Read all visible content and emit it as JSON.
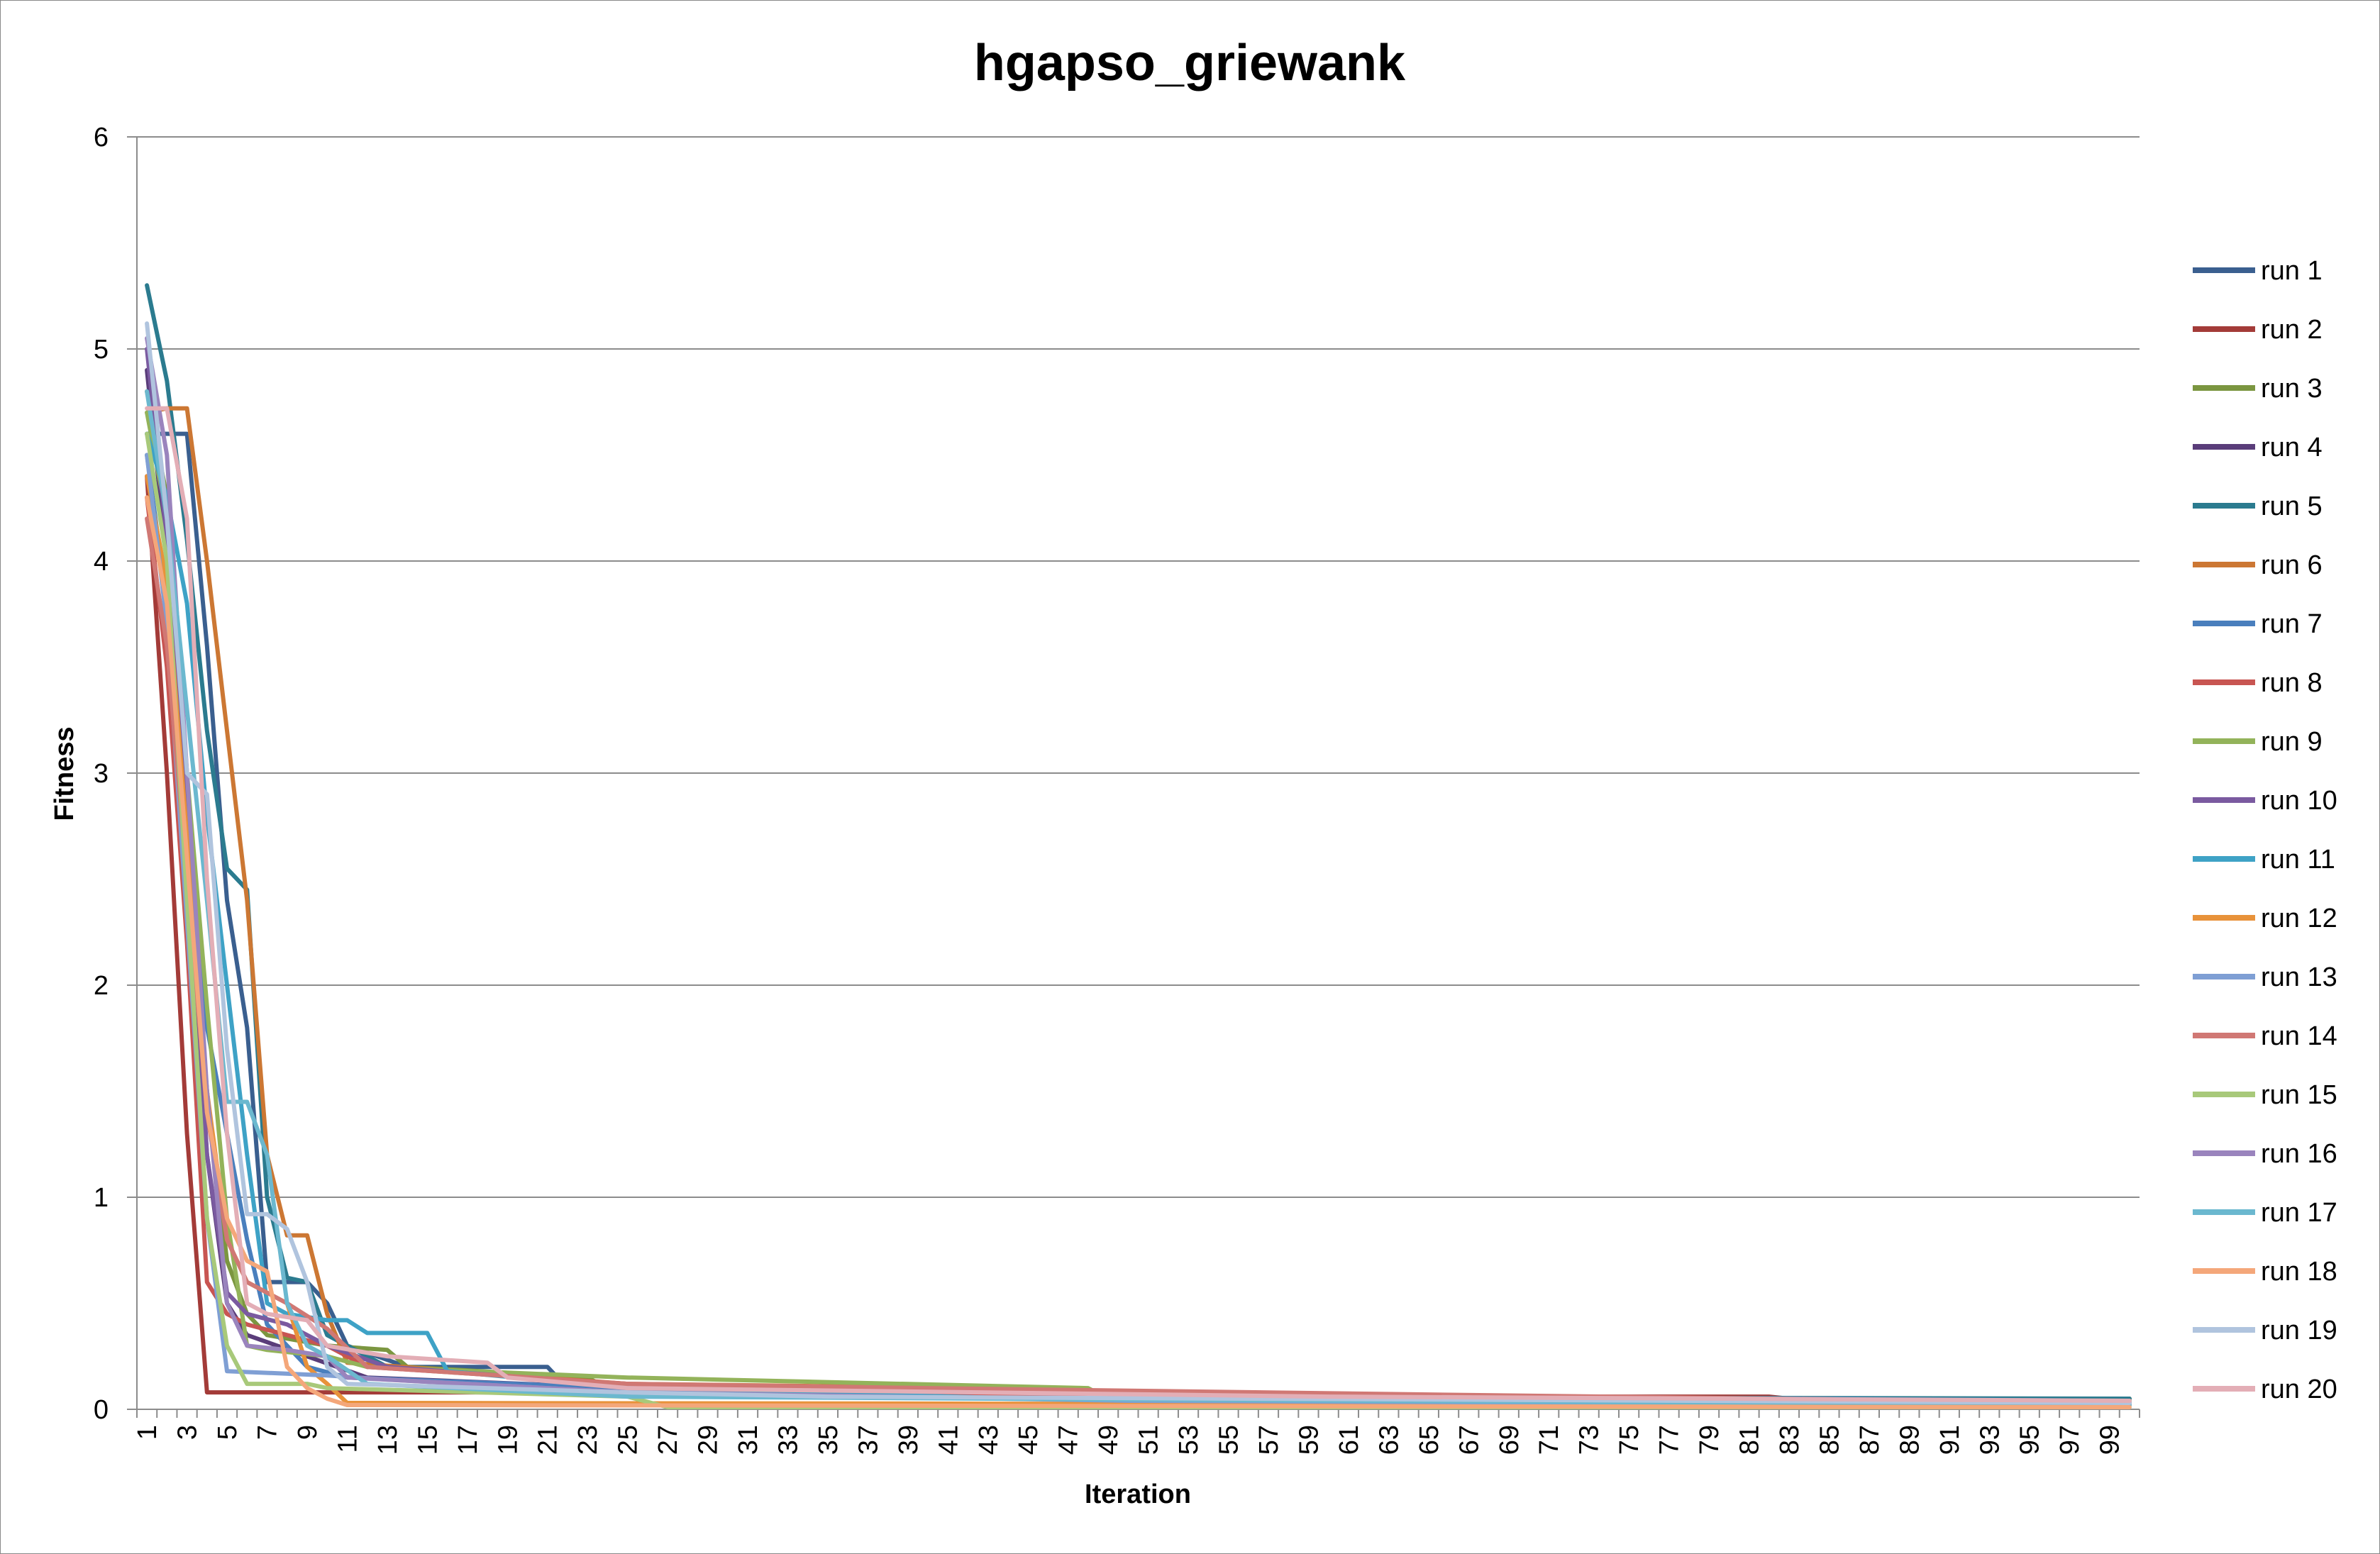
{
  "chart_data": {
    "type": "line",
    "title": "hgapso_griewank",
    "xlabel": "Iteration",
    "ylabel": "Fitness",
    "ylim": [
      0,
      6
    ],
    "yticks": [
      0,
      1,
      2,
      3,
      4,
      5,
      6
    ],
    "xrange": [
      1,
      100
    ],
    "xtick_step": 2,
    "grid": "horizontal",
    "legend_position": "right",
    "series": [
      {
        "name": "run 1",
        "color": "#3a5f8f",
        "points": [
          [
            1,
            4.6
          ],
          [
            2,
            4.6
          ],
          [
            3,
            4.6
          ],
          [
            4,
            3.6
          ],
          [
            5,
            2.4
          ],
          [
            6,
            1.8
          ],
          [
            7,
            0.6
          ],
          [
            8,
            0.6
          ],
          [
            9,
            0.6
          ],
          [
            10,
            0.5
          ],
          [
            11,
            0.3
          ],
          [
            14,
            0.2
          ],
          [
            21,
            0.2
          ],
          [
            22,
            0.1
          ],
          [
            45,
            0.07
          ],
          [
            100,
            0.04
          ]
        ]
      },
      {
        "name": "run 2",
        "color": "#a33b38",
        "points": [
          [
            1,
            4.4
          ],
          [
            2,
            3.0
          ],
          [
            3,
            1.3
          ],
          [
            4,
            0.08
          ],
          [
            30,
            0.08
          ],
          [
            31,
            0.06
          ],
          [
            82,
            0.06
          ],
          [
            83,
            0.05
          ],
          [
            100,
            0.05
          ]
        ]
      },
      {
        "name": "run 3",
        "color": "#7b9640",
        "points": [
          [
            1,
            4.8
          ],
          [
            2,
            4.3
          ],
          [
            3,
            2.6
          ],
          [
            4,
            1.5
          ],
          [
            5,
            0.7
          ],
          [
            6,
            0.45
          ],
          [
            7,
            0.35
          ],
          [
            10,
            0.3
          ],
          [
            13,
            0.28
          ],
          [
            14,
            0.2
          ],
          [
            23,
            0.15
          ],
          [
            24,
            0.1
          ],
          [
            48,
            0.09
          ],
          [
            49,
            0.05
          ],
          [
            100,
            0.05
          ]
        ]
      },
      {
        "name": "run 4",
        "color": "#5a3d7a",
        "points": [
          [
            1,
            4.9
          ],
          [
            2,
            4.0
          ],
          [
            3,
            2.5
          ],
          [
            4,
            1.2
          ],
          [
            5,
            0.5
          ],
          [
            6,
            0.35
          ],
          [
            9,
            0.25
          ],
          [
            12,
            0.15
          ],
          [
            25,
            0.1
          ],
          [
            50,
            0.06
          ],
          [
            100,
            0.03
          ]
        ]
      },
      {
        "name": "run 5",
        "color": "#2b7b8f",
        "points": [
          [
            1,
            5.3
          ],
          [
            2,
            4.85
          ],
          [
            3,
            4.1
          ],
          [
            4,
            3.2
          ],
          [
            5,
            2.55
          ],
          [
            6,
            2.45
          ],
          [
            7,
            1.0
          ],
          [
            8,
            0.62
          ],
          [
            9,
            0.6
          ],
          [
            10,
            0.35
          ],
          [
            13,
            0.2
          ],
          [
            20,
            0.15
          ],
          [
            25,
            0.1
          ],
          [
            45,
            0.06
          ],
          [
            100,
            0.05
          ]
        ]
      },
      {
        "name": "run 6",
        "color": "#cc7733",
        "points": [
          [
            1,
            4.7
          ],
          [
            2,
            4.72
          ],
          [
            3,
            4.72
          ],
          [
            4,
            4.0
          ],
          [
            5,
            3.2
          ],
          [
            6,
            2.4
          ],
          [
            7,
            1.2
          ],
          [
            8,
            0.82
          ],
          [
            9,
            0.82
          ],
          [
            10,
            0.45
          ],
          [
            11,
            0.22
          ],
          [
            25,
            0.12
          ],
          [
            43,
            0.1
          ],
          [
            44,
            0.06
          ],
          [
            100,
            0.04
          ]
        ]
      },
      {
        "name": "run 7",
        "color": "#4a7fbd",
        "points": [
          [
            1,
            4.5
          ],
          [
            2,
            3.8
          ],
          [
            3,
            2.6
          ],
          [
            4,
            1.8
          ],
          [
            5,
            1.3
          ],
          [
            6,
            0.8
          ],
          [
            7,
            0.4
          ],
          [
            8,
            0.3
          ],
          [
            9,
            0.2
          ],
          [
            11,
            0.15
          ],
          [
            25,
            0.1
          ],
          [
            40,
            0.07
          ],
          [
            68,
            0.06
          ],
          [
            100,
            0.04
          ]
        ]
      },
      {
        "name": "run 8",
        "color": "#c85552",
        "points": [
          [
            1,
            4.3
          ],
          [
            2,
            3.5
          ],
          [
            3,
            2.2
          ],
          [
            4,
            0.6
          ],
          [
            5,
            0.45
          ],
          [
            6,
            0.4
          ],
          [
            8,
            0.35
          ],
          [
            10,
            0.3
          ],
          [
            12,
            0.2
          ],
          [
            25,
            0.12
          ],
          [
            30,
            0.08
          ],
          [
            100,
            0.03
          ]
        ]
      },
      {
        "name": "run 9",
        "color": "#93b35a",
        "points": [
          [
            1,
            4.7
          ],
          [
            2,
            4.2
          ],
          [
            3,
            3.0
          ],
          [
            4,
            1.9
          ],
          [
            5,
            0.9
          ],
          [
            6,
            0.3
          ],
          [
            7,
            0.28
          ],
          [
            10,
            0.25
          ],
          [
            12,
            0.2
          ],
          [
            25,
            0.15
          ],
          [
            48,
            0.1
          ],
          [
            49,
            0.05
          ],
          [
            100,
            0.04
          ]
        ]
      },
      {
        "name": "run 10",
        "color": "#7a5aa0",
        "points": [
          [
            1,
            5.0
          ],
          [
            2,
            4.1
          ],
          [
            3,
            2.8
          ],
          [
            4,
            1.2
          ],
          [
            5,
            0.55
          ],
          [
            6,
            0.45
          ],
          [
            8,
            0.4
          ],
          [
            10,
            0.3
          ],
          [
            13,
            0.2
          ],
          [
            20,
            0.15
          ],
          [
            25,
            0.1
          ],
          [
            45,
            0.05
          ],
          [
            100,
            0.03
          ]
        ]
      },
      {
        "name": "run 11",
        "color": "#3ea2c6",
        "points": [
          [
            1,
            4.6
          ],
          [
            2,
            4.3
          ],
          [
            3,
            3.8
          ],
          [
            4,
            2.8
          ],
          [
            5,
            2.0
          ],
          [
            6,
            1.2
          ],
          [
            7,
            0.5
          ],
          [
            8,
            0.45
          ],
          [
            10,
            0.42
          ],
          [
            11,
            0.42
          ],
          [
            12,
            0.36
          ],
          [
            15,
            0.36
          ],
          [
            16,
            0.18
          ],
          [
            25,
            0.1
          ],
          [
            45,
            0.05
          ],
          [
            100,
            0.02
          ]
        ]
      },
      {
        "name": "run 12",
        "color": "#e8923a",
        "points": [
          [
            1,
            4.4
          ],
          [
            2,
            3.9
          ],
          [
            3,
            2.7
          ],
          [
            4,
            1.5
          ],
          [
            5,
            0.8
          ],
          [
            6,
            0.6
          ],
          [
            7,
            0.55
          ],
          [
            8,
            0.5
          ],
          [
            9,
            0.2
          ],
          [
            10,
            0.12
          ],
          [
            11,
            0.03
          ],
          [
            100,
            0.02
          ]
        ]
      },
      {
        "name": "run 13",
        "color": "#7f9fd4",
        "points": [
          [
            1,
            4.5
          ],
          [
            2,
            3.7
          ],
          [
            3,
            2.3
          ],
          [
            4,
            0.9
          ],
          [
            5,
            0.18
          ],
          [
            10,
            0.16
          ],
          [
            13,
            0.14
          ],
          [
            25,
            0.08
          ],
          [
            50,
            0.04
          ],
          [
            100,
            0.02
          ]
        ]
      },
      {
        "name": "run 14",
        "color": "#d07874",
        "points": [
          [
            1,
            4.2
          ],
          [
            2,
            3.6
          ],
          [
            3,
            2.5
          ],
          [
            4,
            1.4
          ],
          [
            5,
            0.8
          ],
          [
            6,
            0.6
          ],
          [
            8,
            0.5
          ],
          [
            10,
            0.38
          ],
          [
            12,
            0.2
          ],
          [
            25,
            0.12
          ],
          [
            40,
            0.1
          ],
          [
            65,
            0.07
          ],
          [
            100,
            0.03
          ]
        ]
      },
      {
        "name": "run 15",
        "color": "#a8c97a",
        "points": [
          [
            1,
            4.6
          ],
          [
            2,
            4.0
          ],
          [
            3,
            2.4
          ],
          [
            4,
            0.9
          ],
          [
            5,
            0.3
          ],
          [
            6,
            0.12
          ],
          [
            9,
            0.12
          ],
          [
            10,
            0.1
          ],
          [
            25,
            0.06
          ],
          [
            27,
            0.01
          ],
          [
            100,
            0.01
          ]
        ]
      },
      {
        "name": "run 16",
        "color": "#9a84bd",
        "points": [
          [
            1,
            5.05
          ],
          [
            2,
            4.5
          ],
          [
            3,
            3.0
          ],
          [
            4,
            1.5
          ],
          [
            5,
            0.5
          ],
          [
            6,
            0.3
          ],
          [
            8,
            0.28
          ],
          [
            10,
            0.25
          ],
          [
            11,
            0.15
          ],
          [
            25,
            0.08
          ],
          [
            45,
            0.05
          ],
          [
            100,
            0.03
          ]
        ]
      },
      {
        "name": "run 17",
        "color": "#6bb8cf",
        "points": [
          [
            1,
            4.8
          ],
          [
            2,
            4.2
          ],
          [
            3,
            3.3
          ],
          [
            4,
            2.4
          ],
          [
            5,
            1.45
          ],
          [
            6,
            1.45
          ],
          [
            7,
            1.2
          ],
          [
            8,
            0.5
          ],
          [
            9,
            0.3
          ],
          [
            10,
            0.25
          ],
          [
            12,
            0.12
          ],
          [
            25,
            0.06
          ],
          [
            100,
            0.02
          ]
        ]
      },
      {
        "name": "run 18",
        "color": "#f4a77a",
        "points": [
          [
            1,
            4.3
          ],
          [
            2,
            3.8
          ],
          [
            3,
            2.6
          ],
          [
            4,
            1.4
          ],
          [
            5,
            0.9
          ],
          [
            6,
            0.7
          ],
          [
            7,
            0.65
          ],
          [
            8,
            0.2
          ],
          [
            9,
            0.1
          ],
          [
            10,
            0.05
          ],
          [
            11,
            0.02
          ],
          [
            100,
            0.01
          ]
        ]
      },
      {
        "name": "run 19",
        "color": "#b0c4de",
        "points": [
          [
            1,
            5.12
          ],
          [
            2,
            4.2
          ],
          [
            3,
            3.0
          ],
          [
            4,
            2.9
          ],
          [
            5,
            1.7
          ],
          [
            6,
            0.92
          ],
          [
            7,
            0.92
          ],
          [
            8,
            0.85
          ],
          [
            9,
            0.6
          ],
          [
            10,
            0.2
          ],
          [
            11,
            0.12
          ],
          [
            18,
            0.1
          ],
          [
            25,
            0.08
          ],
          [
            35,
            0.06
          ],
          [
            100,
            0.03
          ]
        ]
      },
      {
        "name": "run 20",
        "color": "#e3aeb6",
        "points": [
          [
            1,
            4.72
          ],
          [
            2,
            4.72
          ],
          [
            3,
            4.2
          ],
          [
            4,
            2.5
          ],
          [
            5,
            1.3
          ],
          [
            6,
            0.5
          ],
          [
            7,
            0.45
          ],
          [
            9,
            0.42
          ],
          [
            10,
            0.3
          ],
          [
            13,
            0.25
          ],
          [
            18,
            0.22
          ],
          [
            19,
            0.15
          ],
          [
            25,
            0.1
          ],
          [
            60,
            0.06
          ],
          [
            100,
            0.04
          ]
        ]
      }
    ]
  }
}
